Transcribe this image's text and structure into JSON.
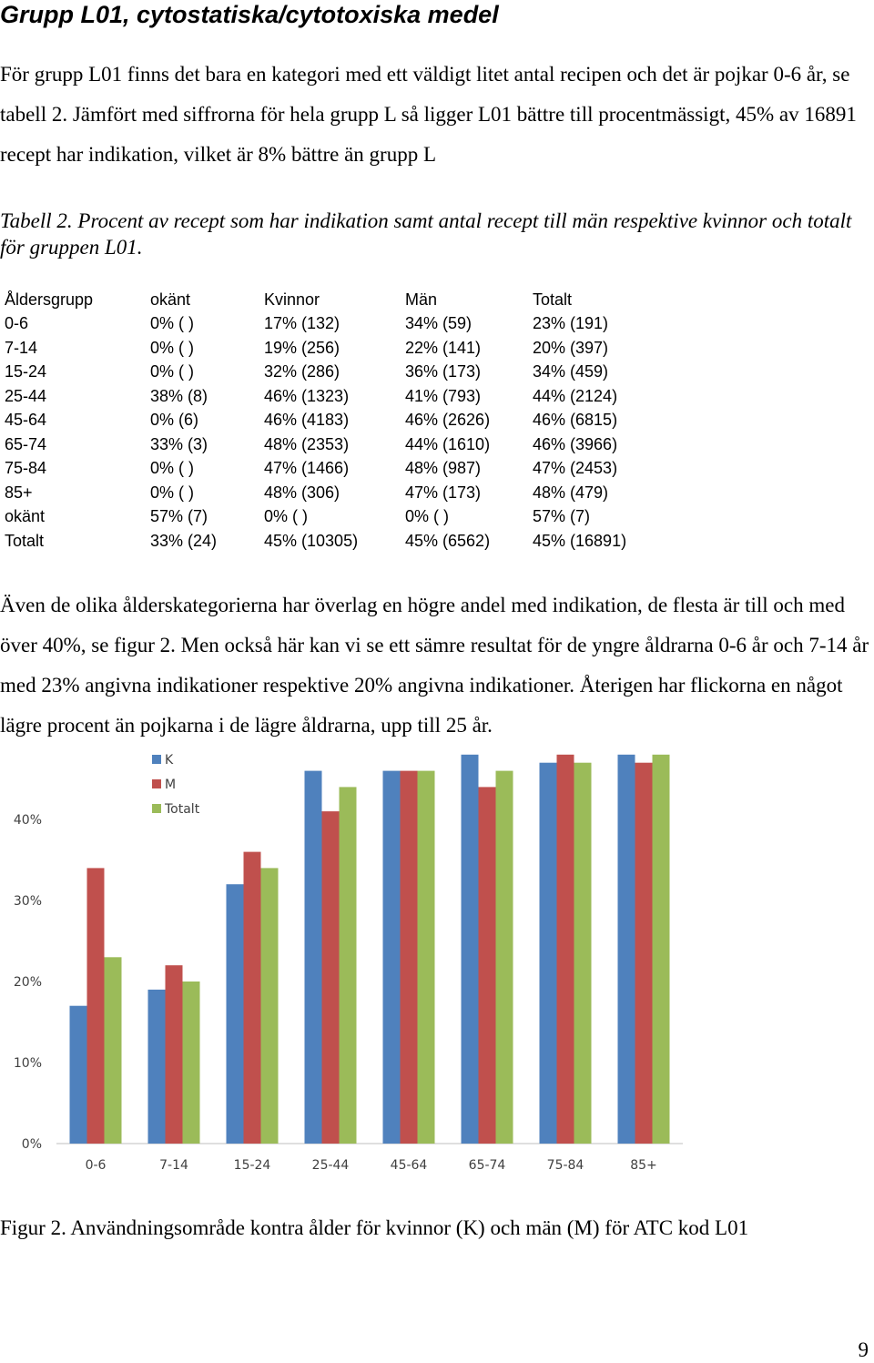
{
  "heading": "Grupp L01, cytostatiska/cytotoxiska medel",
  "intro_paragraph": "För grupp L01 finns det bara en kategori med ett väldigt litet antal recipen och det är pojkar 0-6 år, se tabell 2. Jämfört med siffrorna för hela grupp L så ligger L01  bättre till procentmässigt, 45% av 16891 recept har indikation, vilket är 8% bättre än grupp L",
  "table_caption": "Tabell 2. Procent av recept som har indikation samt antal recept till män respektive kvinnor och totalt för gruppen L01.",
  "table": {
    "headers": [
      "Åldersgrupp",
      "okänt",
      "Kvinnor",
      "Män",
      "Totalt"
    ],
    "rows": [
      [
        "0-6",
        "0% ( )",
        "17% (132)",
        "34% (59)",
        "23% (191)"
      ],
      [
        "7-14",
        "0% ( )",
        "19% (256)",
        "22% (141)",
        "20% (397)"
      ],
      [
        "15-24",
        "0% ( )",
        "32% (286)",
        "36% (173)",
        "34% (459)"
      ],
      [
        "25-44",
        "38% (8)",
        "46% (1323)",
        "41% (793)",
        "44% (2124)"
      ],
      [
        "45-64",
        "0% (6)",
        "46% (4183)",
        "46% (2626)",
        "46% (6815)"
      ],
      [
        "65-74",
        "33% (3)",
        "48% (2353)",
        "44% (1610)",
        "46% (3966)"
      ],
      [
        "75-84",
        "0% ( )",
        "47% (1466)",
        "48% (987)",
        "47% (2453)"
      ],
      [
        "85+",
        "0% ( )",
        "48% (306)",
        "47% (173)",
        "48% (479)"
      ],
      [
        "okänt",
        "57% (7)",
        "0% ( )",
        "0% ( )",
        "57% (7)"
      ],
      [
        "Totalt",
        "33% (24)",
        "45% (10305)",
        "45% (6562)",
        "45% (16891)"
      ]
    ]
  },
  "body_paragraph": "Även de olika ålderskategorierna har överlag en högre andel med indikation, de flesta är till och med över 40%, se figur 2. Men också här kan vi se ett sämre resultat för de yngre åldrarna 0-6 år och 7-14 år med 23% angivna indikationer respektive 20% angivna indikationer. Återigen har flickorna en något lägre procent än pojkarna i de lägre åldrarna, upp till 25 år.",
  "chart_data": {
    "type": "bar",
    "categories": [
      "0-6",
      "7-14",
      "15-24",
      "25-44",
      "45-64",
      "65-74",
      "75-84",
      "85+"
    ],
    "series": [
      {
        "name": "K",
        "color": "#4f81bd",
        "values": [
          17,
          19,
          32,
          46,
          46,
          48,
          47,
          48
        ]
      },
      {
        "name": "M",
        "color": "#c0504d",
        "values": [
          34,
          22,
          36,
          41,
          46,
          44,
          48,
          47
        ]
      },
      {
        "name": "Totalt",
        "color": "#9bbb59",
        "values": [
          23,
          20,
          34,
          44,
          46,
          46,
          47,
          48
        ]
      }
    ],
    "yticks": [
      "0%",
      "10%",
      "20%",
      "30%",
      "40%"
    ],
    "ylim": [
      0,
      48
    ],
    "grid": false,
    "legend": "top-left"
  },
  "figure_caption": "Figur 2. Användningsområde kontra ålder för kvinnor (K) och män (M) för ATC kod L01",
  "page_number": "9"
}
